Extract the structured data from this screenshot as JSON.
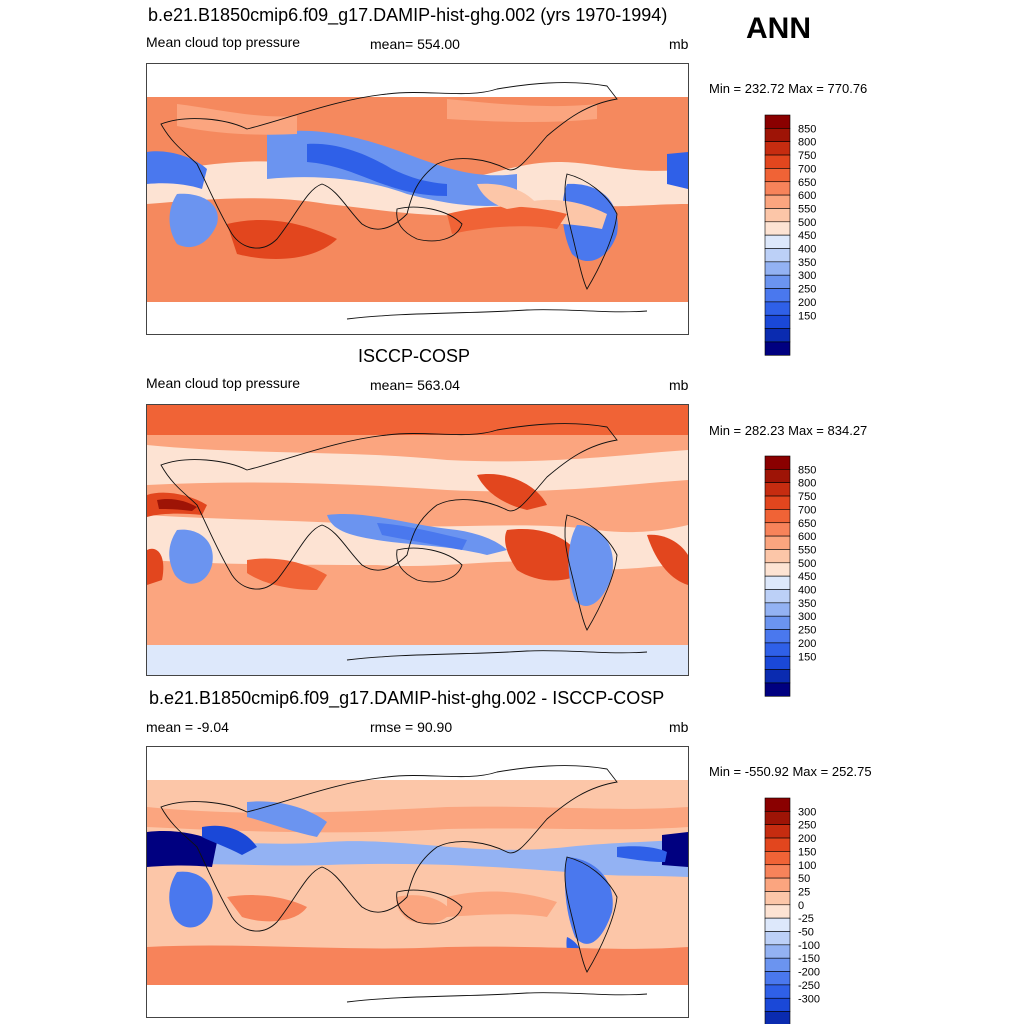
{
  "header": {
    "season": "ANN"
  },
  "colorbar_colors": {
    "blues": [
      "#000080",
      "#0a2bb0",
      "#1a48d8",
      "#2f60e8",
      "#4a78ee",
      "#6b94f0",
      "#93b2f3",
      "#bcd0f7",
      "#dde8fb"
    ],
    "neutral": "#fde3d3",
    "reds": [
      "#fcc6a8",
      "#fba57f",
      "#f7835a",
      "#f06336",
      "#e2461e",
      "#c62c10",
      "#9e1406",
      "#8a0000"
    ]
  },
  "panels": [
    {
      "title": "b.e21.B1850cmip6.f09_g17.DAMIP-hist-ghg.002 (yrs 1970-1994)",
      "left_label": "Mean cloud top pressure",
      "center_label": "mean= 554.00",
      "units": "mb",
      "minmax": "Min = 232.72 Max = 770.76",
      "colorbar_labels": [
        "850",
        "800",
        "750",
        "700",
        "650",
        "600",
        "550",
        "500",
        "450",
        "400",
        "350",
        "300",
        "250",
        "200",
        "150"
      ]
    },
    {
      "title": "ISCCP-COSP",
      "left_label": "Mean cloud top pressure",
      "center_label": "mean= 563.04",
      "units": "mb",
      "minmax": "Min = 282.23 Max = 834.27",
      "colorbar_labels": [
        "850",
        "800",
        "750",
        "700",
        "650",
        "600",
        "550",
        "500",
        "450",
        "400",
        "350",
        "300",
        "250",
        "200",
        "150"
      ]
    },
    {
      "title": "b.e21.B1850cmip6.f09_g17.DAMIP-hist-ghg.002 - ISCCP-COSP",
      "left_label": "mean =  -9.04",
      "center_label": "rmse =  90.90",
      "units": "mb",
      "minmax": "Min = -550.92 Max = 252.75",
      "colorbar_labels": [
        "300",
        "250",
        "200",
        "150",
        "100",
        "50",
        "25",
        "0",
        "-25",
        "-50",
        "-100",
        "-150",
        "-200",
        "-250",
        "-300"
      ]
    }
  ],
  "chart_data": [
    {
      "type": "heatmap",
      "title": "b.e21.B1850cmip6.f09_g17.DAMIP-hist-ghg.002 (yrs 1970-1994)",
      "variable": "Mean cloud top pressure",
      "units": "mb",
      "mean": 554.0,
      "min": 232.72,
      "max": 770.76,
      "contour_levels": [
        150,
        200,
        250,
        300,
        350,
        400,
        450,
        500,
        550,
        600,
        650,
        700,
        750,
        800,
        850
      ],
      "colorbar_labels": [
        "850",
        "800",
        "750",
        "700",
        "650",
        "600",
        "550",
        "500",
        "450",
        "400",
        "350",
        "300",
        "250",
        "200",
        "150"
      ]
    },
    {
      "type": "heatmap",
      "title": "ISCCP-COSP",
      "variable": "Mean cloud top pressure",
      "units": "mb",
      "mean": 563.04,
      "min": 282.23,
      "max": 834.27,
      "contour_levels": [
        150,
        200,
        250,
        300,
        350,
        400,
        450,
        500,
        550,
        600,
        650,
        700,
        750,
        800,
        850
      ],
      "colorbar_labels": [
        "850",
        "800",
        "750",
        "700",
        "650",
        "600",
        "550",
        "500",
        "450",
        "400",
        "350",
        "300",
        "250",
        "200",
        "150"
      ]
    },
    {
      "type": "heatmap",
      "title": "b.e21.B1850cmip6.f09_g17.DAMIP-hist-ghg.002 - ISCCP-COSP",
      "units": "mb",
      "mean": -9.04,
      "rmse": 90.9,
      "min": -550.92,
      "max": 252.75,
      "contour_levels": [
        -300,
        -250,
        -200,
        -150,
        -100,
        -50,
        -25,
        0,
        25,
        50,
        100,
        150,
        200,
        250,
        300
      ],
      "colorbar_labels": [
        "300",
        "250",
        "200",
        "150",
        "100",
        "50",
        "25",
        "0",
        "-25",
        "-50",
        "-100",
        "-150",
        "-200",
        "-250",
        "-300"
      ]
    }
  ]
}
